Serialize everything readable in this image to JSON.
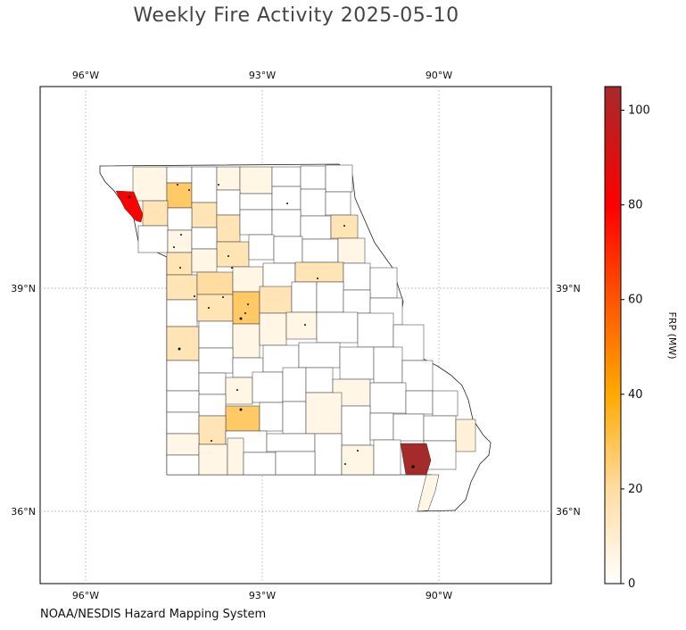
{
  "title": "Weekly Fire Activity 2025-05-10",
  "source": "NOAA/NESDIS Hazard Mapping System",
  "axes": {
    "lon_ticks": [
      "96°W",
      "93°W",
      "90°W"
    ],
    "lat_ticks": [
      "39°N",
      "36°N"
    ]
  },
  "colorbar": {
    "label": "FRP (MW)",
    "ticks": [
      "0",
      "20",
      "40",
      "60",
      "80",
      "100"
    ],
    "range": [
      0,
      105
    ],
    "colors": [
      "#ffffff",
      "#ffdca0",
      "#ffaa00",
      "#ff0000",
      "#a52a2a"
    ]
  },
  "colors": {
    "county_none": "#ffffff",
    "county_low": "#fff6e6",
    "county_mid": "#ffe4b5",
    "county_high": "#ffc965",
    "county_max": "#a52a2a",
    "county_hot": "#ff0000",
    "grid": "#b0b0b0"
  }
}
